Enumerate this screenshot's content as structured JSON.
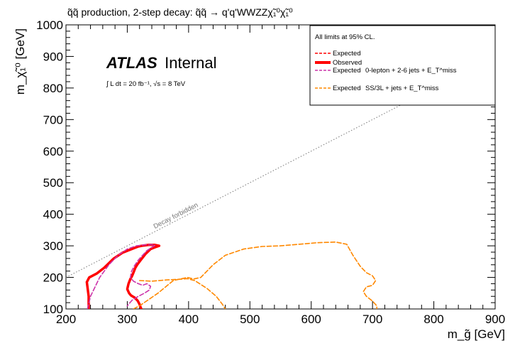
{
  "chart_data": {
    "type": "line",
    "title": "q̃q̃ production, 2-step decay: q̃q̃ → q'q'WWZZχ̃₁⁰χ̃₁⁰",
    "xlabel": "m_g̃ [GeV]",
    "ylabel": "m_χ̃₁⁰ [GeV]",
    "xlim": [
      200,
      900
    ],
    "ylim": [
      100,
      1000
    ],
    "x_ticks": [
      "200",
      "300",
      "400",
      "500",
      "600",
      "700",
      "800",
      "900"
    ],
    "y_ticks": [
      "100",
      "200",
      "300",
      "400",
      "500",
      "600",
      "700",
      "800",
      "900",
      "1000"
    ],
    "grid": false,
    "legend_position": "top-right",
    "atlas_label": {
      "bold": "ATLAS",
      "normal": "Internal"
    },
    "lumi_label": "∫ L dt = 20 fb⁻¹, √s = 8 TeV",
    "diagonal": {
      "label": "Decay forbidden",
      "x": [
        200,
        900
      ],
      "y": [
        200,
        900
      ],
      "color": "#777777"
    },
    "legend": {
      "header": "All limits at 95% CL.",
      "entries": [
        {
          "label": "Expected",
          "extra": "",
          "color": "#ff0000",
          "style": "dashed"
        },
        {
          "label": "Observed",
          "extra": "",
          "color": "#ff0000",
          "style": "solid-thick"
        },
        {
          "label": "Expected",
          "extra": "0-lepton + 2-6 jets + E_T^miss",
          "color": "#cc33aa",
          "style": "dashed"
        },
        {
          "label": "Expected",
          "extra": "SS/3L + jets + E_T^miss",
          "color": "#ff8800",
          "style": "dashed"
        }
      ]
    },
    "series": [
      {
        "name": "Expected",
        "color": "#ff0000",
        "style": "dashed",
        "x": [
          237,
          237,
          234,
          238,
          250,
          262,
          278,
          292,
          305,
          318,
          326,
          335,
          345,
          352,
          346,
          338,
          330,
          322,
          316,
          313,
          310,
          308,
          305,
          302,
          300,
          303,
          306,
          312,
          317,
          320,
          322,
          323
        ],
        "y": [
          100,
          140,
          185,
          200,
          212,
          230,
          260,
          278,
          288,
          298,
          301,
          303,
          303,
          300,
          296,
          290,
          275,
          255,
          240,
          230,
          215,
          205,
          195,
          180,
          163,
          150,
          143,
          136,
          126,
          115,
          104,
          100
        ]
      },
      {
        "name": "Observed",
        "color": "#ff0000",
        "style": "solid",
        "x": [
          237,
          237,
          234,
          238,
          250,
          262,
          278,
          292,
          305,
          318,
          326,
          335,
          345,
          352,
          346,
          338,
          330,
          322,
          316,
          313,
          310,
          308,
          305,
          302,
          300,
          303,
          306,
          312,
          317,
          320,
          322,
          323
        ],
        "y": [
          100,
          140,
          185,
          200,
          212,
          230,
          260,
          278,
          288,
          298,
          301,
          303,
          303,
          300,
          296,
          290,
          275,
          255,
          240,
          230,
          215,
          205,
          195,
          180,
          163,
          150,
          143,
          136,
          126,
          115,
          104,
          100
        ]
      },
      {
        "name": "Expected 0-lepton + 2-6 jets + E_T^miss",
        "color": "#cc33aa",
        "style": "dashed",
        "x": [
          235,
          240,
          255,
          270,
          285,
          300,
          315,
          328,
          340,
          345,
          340,
          332,
          325,
          318,
          312,
          307,
          305,
          310,
          318,
          325,
          332,
          338,
          336,
          328,
          318,
          308,
          300
        ],
        "y": [
          100,
          140,
          200,
          240,
          270,
          290,
          300,
          303,
          304,
          302,
          295,
          285,
          270,
          255,
          238,
          220,
          200,
          188,
          180,
          175,
          180,
          172,
          160,
          150,
          140,
          128,
          110
        ]
      },
      {
        "name": "Expected SS/3L + jets + E_T^miss",
        "color": "#ff8800",
        "style": "dashed",
        "x": [
          310,
          320,
          350,
          375,
          398,
          408,
          420,
          440,
          460,
          490,
          520,
          550,
          580,
          610,
          640,
          658,
          668,
          680,
          690,
          700,
          705,
          700,
          690,
          685,
          690,
          700,
          707,
          707
        ],
        "y": [
          100,
          110,
          150,
          190,
          200,
          195,
          200,
          240,
          270,
          290,
          298,
          300,
          305,
          310,
          312,
          305,
          270,
          235,
          215,
          205,
          190,
          175,
          170,
          155,
          140,
          125,
          110,
          100
        ]
      },
      {
        "name": "Expected SS/3L + jets + E_T^miss (inner)",
        "color": "#ff8800",
        "style": "dashed",
        "x": [
          320,
          340,
          365,
          385,
          398,
          410,
          430,
          445,
          455,
          460
        ],
        "y": [
          190,
          188,
          192,
          194,
          196,
          190,
          165,
          140,
          115,
          100
        ]
      }
    ]
  }
}
